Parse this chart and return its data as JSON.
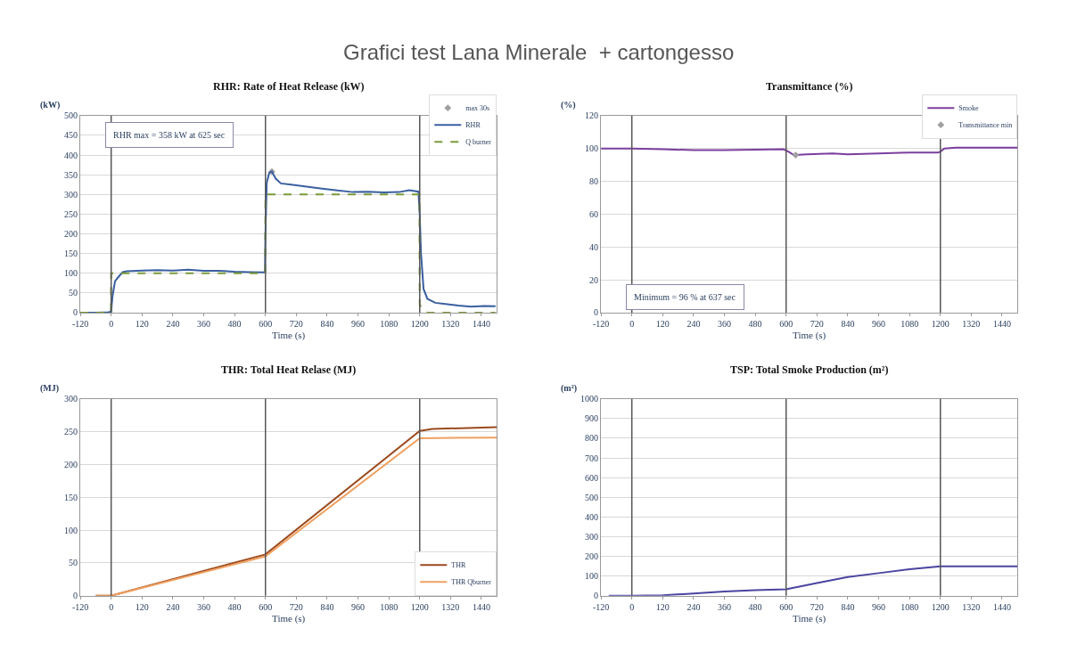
{
  "chart_data": [
    {
      "type": "other",
      "title": "Grafici test Lana Minerale  + cartongesso"
    },
    {
      "type": "line",
      "title": "RHR: Rate of Heat Release (kW)",
      "ylabel": "(kW)",
      "xlabel": "Time (s)",
      "xlim": [
        -120,
        1500
      ],
      "ylim": [
        0,
        500
      ],
      "xticks": [
        -120,
        0,
        120,
        240,
        360,
        480,
        600,
        720,
        840,
        960,
        1080,
        1200,
        1320,
        1440
      ],
      "yticks": [
        0,
        50,
        100,
        150,
        200,
        250,
        300,
        350,
        400,
        450,
        500
      ],
      "grid": "y",
      "legend": "top right",
      "marker": "none",
      "annotations": [
        "RHR max = 358 kW at 625 sec"
      ],
      "ref_lines": [
        {
          "axis": "x",
          "value": 0,
          "color": "#555555"
        },
        {
          "axis": "x",
          "value": 600,
          "color": "#555555"
        },
        {
          "axis": "x",
          "value": 1200,
          "color": "#555555"
        }
      ],
      "series": [
        {
          "name": "max 30s",
          "type": "scatter",
          "marker": "diamond",
          "color": "#a0a0a0",
          "x": [
            625
          ],
          "values": [
            358
          ]
        },
        {
          "name": "RHR",
          "color": "#3a5fa0",
          "x": [
            -120,
            -60,
            -10,
            0,
            5,
            15,
            30,
            45,
            60,
            120,
            180,
            240,
            300,
            360,
            420,
            480,
            540,
            598,
            600,
            605,
            615,
            625,
            640,
            660,
            700,
            760,
            820,
            880,
            940,
            1000,
            1060,
            1120,
            1160,
            1195,
            1200,
            1205,
            1215,
            1230,
            1260,
            1300,
            1350,
            1400,
            1450,
            1495
          ],
          "values": [
            0,
            0,
            1,
            3,
            40,
            80,
            92,
            103,
            105,
            107,
            108,
            107,
            109,
            106,
            106,
            104,
            103,
            102,
            200,
            330,
            355,
            358,
            340,
            328,
            325,
            320,
            315,
            310,
            306,
            307,
            305,
            306,
            311,
            307,
            250,
            150,
            60,
            35,
            25,
            22,
            18,
            15,
            17,
            16
          ]
        },
        {
          "name": "Q burner",
          "color": "#7a9a3a",
          "line_style": "dashed",
          "x": [
            -120,
            -1,
            0,
            599,
            600,
            1199,
            1200,
            1215,
            1230,
            1495
          ],
          "values": [
            0,
            0,
            100,
            100,
            300,
            300,
            20,
            5,
            0,
            0
          ]
        }
      ]
    },
    {
      "type": "line",
      "title": "Transmittance (%)",
      "ylabel": "(%)",
      "xlabel": "Time (s)",
      "xlim": [
        -120,
        1500
      ],
      "ylim": [
        0,
        120
      ],
      "xticks": [
        -120,
        0,
        120,
        240,
        360,
        480,
        600,
        720,
        840,
        960,
        1080,
        1200,
        1320,
        1440
      ],
      "yticks": [
        0,
        20,
        40,
        60,
        80,
        100,
        120
      ],
      "grid": "y",
      "legend": "top right",
      "marker": "none",
      "annotations": [
        "Minimum = 96 % at 637 sec"
      ],
      "ref_lines": [
        {
          "axis": "x",
          "value": 0,
          "color": "#555555"
        },
        {
          "axis": "x",
          "value": 600,
          "color": "#555555"
        },
        {
          "axis": "x",
          "value": 1200,
          "color": "#555555"
        }
      ],
      "series": [
        {
          "name": "Smoke",
          "color": "#7b3f9e",
          "x": [
            -120,
            0,
            120,
            240,
            360,
            480,
            590,
            610,
            630,
            637,
            680,
            780,
            840,
            960,
            1080,
            1190,
            1200,
            1215,
            1260,
            1500
          ],
          "values": [
            100,
            100,
            99.5,
            99,
            99,
            99.3,
            99.5,
            98,
            96,
            96,
            96.5,
            97,
            96.5,
            97,
            97.5,
            97.5,
            98,
            100,
            100.5,
            100.5
          ]
        },
        {
          "name": "Transmittance min",
          "type": "scatter",
          "marker": "diamond",
          "color": "#a0a0a0",
          "x": [
            637
          ],
          "values": [
            96
          ]
        }
      ]
    },
    {
      "type": "line",
      "title": "THR: Total Heat Relase (MJ)",
      "ylabel": "(MJ)",
      "xlabel": "Time (s)",
      "xlim": [
        -120,
        1500
      ],
      "ylim": [
        0,
        300
      ],
      "xticks": [
        -120,
        0,
        120,
        240,
        360,
        480,
        600,
        720,
        840,
        960,
        1080,
        1200,
        1320,
        1440
      ],
      "yticks": [
        0,
        50,
        100,
        150,
        200,
        250,
        300
      ],
      "grid": "y",
      "legend": "bottom right",
      "marker": "none",
      "ref_lines": [
        {
          "axis": "x",
          "value": 0,
          "color": "#555555"
        },
        {
          "axis": "x",
          "value": 600,
          "color": "#555555"
        },
        {
          "axis": "x",
          "value": 1200,
          "color": "#555555"
        }
      ],
      "series": [
        {
          "name": "THR",
          "color": "#9c4a1e",
          "x": [
            -60,
            0,
            600,
            1200,
            1250,
            1500
          ],
          "values": [
            0,
            0,
            63,
            251,
            254,
            257
          ]
        },
        {
          "name": "THR Qburner",
          "color": "#f0a060",
          "x": [
            -60,
            0,
            600,
            1200,
            1500
          ],
          "values": [
            0,
            0,
            60,
            240,
            241
          ]
        }
      ]
    },
    {
      "type": "line",
      "title": "TSP: Total Smoke Production (m²)",
      "ylabel": "(m²)",
      "xlabel": "Time (s)",
      "xlim": [
        -120,
        1500
      ],
      "ylim": [
        0,
        1000
      ],
      "xticks": [
        -120,
        0,
        120,
        240,
        360,
        480,
        600,
        720,
        840,
        960,
        1080,
        1200,
        1320,
        1440
      ],
      "yticks": [
        0,
        100,
        200,
        300,
        400,
        500,
        600,
        700,
        800,
        900,
        1000
      ],
      "grid": "y",
      "legend": false,
      "marker": "none",
      "ref_lines": [
        {
          "axis": "x",
          "value": 0,
          "color": "#555555"
        },
        {
          "axis": "x",
          "value": 600,
          "color": "#555555"
        },
        {
          "axis": "x",
          "value": 1200,
          "color": "#555555"
        }
      ],
      "series": [
        {
          "color": "#4a45a0",
          "x": [
            -90,
            0,
            120,
            240,
            360,
            480,
            600,
            720,
            840,
            960,
            1080,
            1200,
            1500
          ],
          "values": [
            0,
            0,
            2,
            12,
            22,
            28,
            33,
            65,
            95,
            115,
            135,
            150,
            150
          ]
        }
      ]
    }
  ]
}
